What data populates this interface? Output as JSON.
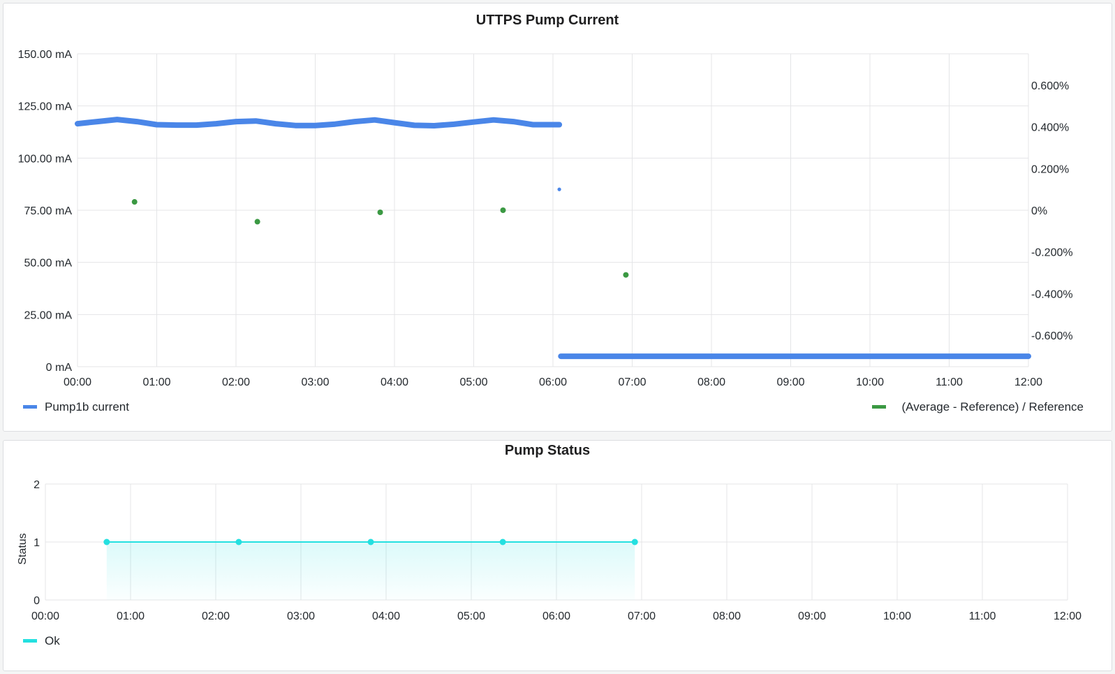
{
  "colors": {
    "pump_current": "#4a86e8",
    "avg_ref": "#3b9943",
    "status_ok": "#24e0e0",
    "grid": "#e4e5e7"
  },
  "chart_data": [
    {
      "type": "scatter",
      "title": "UTTPS Pump Current",
      "x_ticks": [
        "00:00",
        "01:00",
        "02:00",
        "03:00",
        "04:00",
        "05:00",
        "06:00",
        "07:00",
        "08:00",
        "09:00",
        "10:00",
        "11:00",
        "12:00"
      ],
      "x_range_hours": [
        0,
        12
      ],
      "y_left_ticks": [
        "150.00 mA",
        "125.00 mA",
        "100.00 mA",
        "75.00 mA",
        "50.00 mA",
        "25.00 mA",
        "0 mA"
      ],
      "y_left_range": [
        0,
        150
      ],
      "y_right_ticks": [
        "0.600%",
        "0.400%",
        "0.200%",
        "0%",
        "-0.200%",
        "-0.400%",
        "-0.600%"
      ],
      "y_right_range": [
        -0.75,
        0.75
      ],
      "grid": true,
      "legend_position": "bottom",
      "series": [
        {
          "name": "Pump1b current",
          "axis": "left",
          "segments": [
            {
              "x_hours": [
                0.0,
                0.25,
                0.5,
                0.75,
                1.0,
                1.25,
                1.5,
                1.75,
                2.0,
                2.25,
                2.5,
                2.75,
                3.0,
                3.25,
                3.5,
                3.75,
                4.0,
                4.25,
                4.5,
                4.75,
                5.0,
                5.25,
                5.5,
                5.75,
                6.08
              ],
              "y": [
                116.5,
                117.5,
                118.5,
                117.5,
                116,
                115.8,
                115.8,
                116.5,
                117.5,
                117.8,
                116.5,
                115.6,
                115.6,
                116.3,
                117.5,
                118.3,
                117,
                115.7,
                115.5,
                116.2,
                117.3,
                118.3,
                117.5,
                116,
                116
              ]
            },
            {
              "x_hours": [
                6.08
              ],
              "y": [
                85
              ]
            },
            {
              "x_hours": [
                6.1,
                7.0,
                8.0,
                9.0,
                10.0,
                11.0,
                12.0
              ],
              "y": [
                5,
                5,
                5,
                5,
                5,
                5,
                5
              ]
            }
          ]
        },
        {
          "name": "(Average - Reference) / Reference",
          "axis": "right",
          "points": [
            {
              "x_hours": 0.72,
              "y_percent": 0.04
            },
            {
              "x_hours": 2.27,
              "y_percent": -0.055
            },
            {
              "x_hours": 3.82,
              "y_percent": -0.01
            },
            {
              "x_hours": 5.37,
              "y_percent": 0.0
            },
            {
              "x_hours": 6.92,
              "y_percent": -0.31
            }
          ]
        }
      ]
    },
    {
      "type": "area",
      "title": "Pump Status",
      "ylabel": "Status",
      "x_ticks": [
        "00:00",
        "01:00",
        "02:00",
        "03:00",
        "04:00",
        "05:00",
        "06:00",
        "07:00",
        "08:00",
        "09:00",
        "10:00",
        "11:00",
        "12:00"
      ],
      "x_range_hours": [
        0,
        12
      ],
      "y_ticks": [
        "2",
        "1",
        "0"
      ],
      "y_range": [
        0,
        2
      ],
      "grid": true,
      "legend_position": "bottom-left",
      "series": [
        {
          "name": "Ok",
          "x_hours": [
            0.72,
            2.27,
            3.82,
            5.37,
            6.92
          ],
          "y": [
            1,
            1,
            1,
            1,
            1
          ]
        }
      ]
    }
  ]
}
